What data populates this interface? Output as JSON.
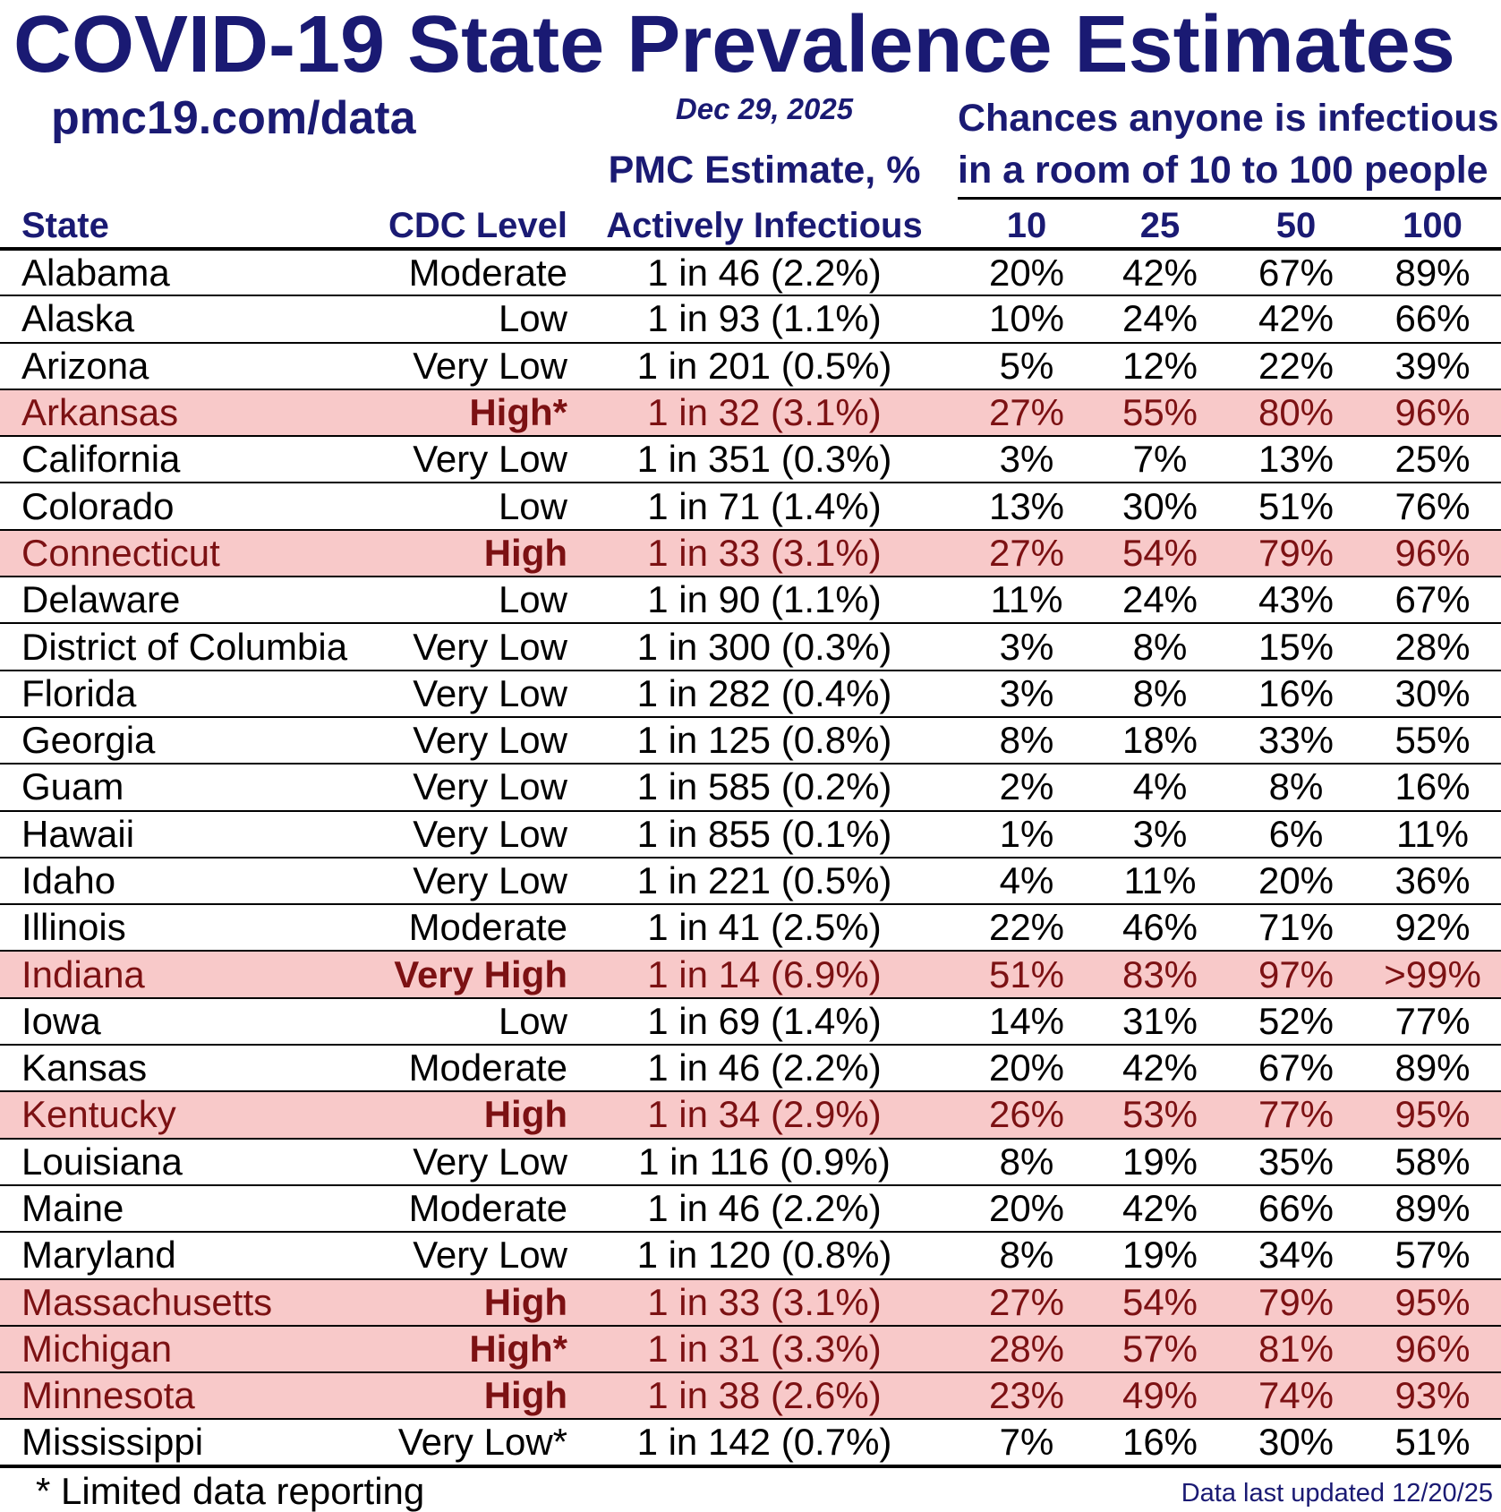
{
  "title": "COVID-19 State Prevalence Estimates",
  "header": {
    "site": "pmc19.com/data",
    "date": "Dec 29, 2025",
    "chances_line1": "Chances anyone is infectious",
    "chances_line2": "in a room of 10 to 100 people",
    "pmc_line1": "PMC Estimate, %",
    "pmc_line2": "Actively Infectious",
    "col_state": "State",
    "col_cdc": "CDC Level",
    "room_sizes": [
      "10",
      "25",
      "50",
      "100"
    ]
  },
  "colors": {
    "navy": "#1a1a73",
    "dark_red": "#7c1113",
    "highlight_pink": "#f8c9c9"
  },
  "chart_data": {
    "type": "table",
    "title": "COVID-19 State Prevalence Estimates",
    "columns": [
      "State",
      "CDC Level",
      "PMC Estimate, % Actively Infectious",
      "10",
      "25",
      "50",
      "100"
    ],
    "rows": [
      {
        "state": "Alabama",
        "cdc_level": "Moderate",
        "pmc_estimate": "1 in 46 (2.2%)",
        "room10": "20%",
        "room25": "42%",
        "room50": "67%",
        "room100": "89%",
        "highlighted": false
      },
      {
        "state": "Alaska",
        "cdc_level": "Low",
        "pmc_estimate": "1 in 93 (1.1%)",
        "room10": "10%",
        "room25": "24%",
        "room50": "42%",
        "room100": "66%",
        "highlighted": false
      },
      {
        "state": "Arizona",
        "cdc_level": "Very Low",
        "pmc_estimate": "1 in 201 (0.5%)",
        "room10": "5%",
        "room25": "12%",
        "room50": "22%",
        "room100": "39%",
        "highlighted": false
      },
      {
        "state": "Arkansas",
        "cdc_level": "High*",
        "pmc_estimate": "1 in 32 (3.1%)",
        "room10": "27%",
        "room25": "55%",
        "room50": "80%",
        "room100": "96%",
        "highlighted": true
      },
      {
        "state": "California",
        "cdc_level": "Very Low",
        "pmc_estimate": "1 in 351 (0.3%)",
        "room10": "3%",
        "room25": "7%",
        "room50": "13%",
        "room100": "25%",
        "highlighted": false
      },
      {
        "state": "Colorado",
        "cdc_level": "Low",
        "pmc_estimate": "1 in 71 (1.4%)",
        "room10": "13%",
        "room25": "30%",
        "room50": "51%",
        "room100": "76%",
        "highlighted": false
      },
      {
        "state": "Connecticut",
        "cdc_level": "High",
        "pmc_estimate": "1 in 33 (3.1%)",
        "room10": "27%",
        "room25": "54%",
        "room50": "79%",
        "room100": "96%",
        "highlighted": true
      },
      {
        "state": "Delaware",
        "cdc_level": "Low",
        "pmc_estimate": "1 in 90 (1.1%)",
        "room10": "11%",
        "room25": "24%",
        "room50": "43%",
        "room100": "67%",
        "highlighted": false
      },
      {
        "state": "District of Columbia",
        "cdc_level": "Very Low",
        "pmc_estimate": "1 in 300 (0.3%)",
        "room10": "3%",
        "room25": "8%",
        "room50": "15%",
        "room100": "28%",
        "highlighted": false
      },
      {
        "state": "Florida",
        "cdc_level": "Very Low",
        "pmc_estimate": "1 in 282 (0.4%)",
        "room10": "3%",
        "room25": "8%",
        "room50": "16%",
        "room100": "30%",
        "highlighted": false
      },
      {
        "state": "Georgia",
        "cdc_level": "Very Low",
        "pmc_estimate": "1 in 125 (0.8%)",
        "room10": "8%",
        "room25": "18%",
        "room50": "33%",
        "room100": "55%",
        "highlighted": false
      },
      {
        "state": "Guam",
        "cdc_level": "Very Low",
        "pmc_estimate": "1 in 585 (0.2%)",
        "room10": "2%",
        "room25": "4%",
        "room50": "8%",
        "room100": "16%",
        "highlighted": false
      },
      {
        "state": "Hawaii",
        "cdc_level": "Very Low",
        "pmc_estimate": "1 in 855 (0.1%)",
        "room10": "1%",
        "room25": "3%",
        "room50": "6%",
        "room100": "11%",
        "highlighted": false
      },
      {
        "state": "Idaho",
        "cdc_level": "Very Low",
        "pmc_estimate": "1 in 221 (0.5%)",
        "room10": "4%",
        "room25": "11%",
        "room50": "20%",
        "room100": "36%",
        "highlighted": false
      },
      {
        "state": "Illinois",
        "cdc_level": "Moderate",
        "pmc_estimate": "1 in 41 (2.5%)",
        "room10": "22%",
        "room25": "46%",
        "room50": "71%",
        "room100": "92%",
        "highlighted": false
      },
      {
        "state": "Indiana",
        "cdc_level": "Very High",
        "pmc_estimate": "1 in 14 (6.9%)",
        "room10": "51%",
        "room25": "83%",
        "room50": "97%",
        "room100": ">99%",
        "highlighted": true
      },
      {
        "state": "Iowa",
        "cdc_level": "Low",
        "pmc_estimate": "1 in 69 (1.4%)",
        "room10": "14%",
        "room25": "31%",
        "room50": "52%",
        "room100": "77%",
        "highlighted": false
      },
      {
        "state": "Kansas",
        "cdc_level": "Moderate",
        "pmc_estimate": "1 in 46 (2.2%)",
        "room10": "20%",
        "room25": "42%",
        "room50": "67%",
        "room100": "89%",
        "highlighted": false
      },
      {
        "state": "Kentucky",
        "cdc_level": "High",
        "pmc_estimate": "1 in 34 (2.9%)",
        "room10": "26%",
        "room25": "53%",
        "room50": "77%",
        "room100": "95%",
        "highlighted": true
      },
      {
        "state": "Louisiana",
        "cdc_level": "Very Low",
        "pmc_estimate": "1 in 116 (0.9%)",
        "room10": "8%",
        "room25": "19%",
        "room50": "35%",
        "room100": "58%",
        "highlighted": false
      },
      {
        "state": "Maine",
        "cdc_level": "Moderate",
        "pmc_estimate": "1 in 46 (2.2%)",
        "room10": "20%",
        "room25": "42%",
        "room50": "66%",
        "room100": "89%",
        "highlighted": false
      },
      {
        "state": "Maryland",
        "cdc_level": "Very Low",
        "pmc_estimate": "1 in 120 (0.8%)",
        "room10": "8%",
        "room25": "19%",
        "room50": "34%",
        "room100": "57%",
        "highlighted": false
      },
      {
        "state": "Massachusetts",
        "cdc_level": "High",
        "pmc_estimate": "1 in 33 (3.1%)",
        "room10": "27%",
        "room25": "54%",
        "room50": "79%",
        "room100": "95%",
        "highlighted": true
      },
      {
        "state": "Michigan",
        "cdc_level": "High*",
        "pmc_estimate": "1 in 31 (3.3%)",
        "room10": "28%",
        "room25": "57%",
        "room50": "81%",
        "room100": "96%",
        "highlighted": true
      },
      {
        "state": "Minnesota",
        "cdc_level": "High",
        "pmc_estimate": "1 in 38 (2.6%)",
        "room10": "23%",
        "room25": "49%",
        "room50": "74%",
        "room100": "93%",
        "highlighted": true
      },
      {
        "state": "Mississippi",
        "cdc_level": "Very Low*",
        "pmc_estimate": "1 in 142 (0.7%)",
        "room10": "7%",
        "room25": "16%",
        "room50": "30%",
        "room100": "51%",
        "highlighted": false
      }
    ]
  },
  "footer": {
    "note": "* Limited data reporting",
    "updated": "Data last updated 12/20/25"
  }
}
